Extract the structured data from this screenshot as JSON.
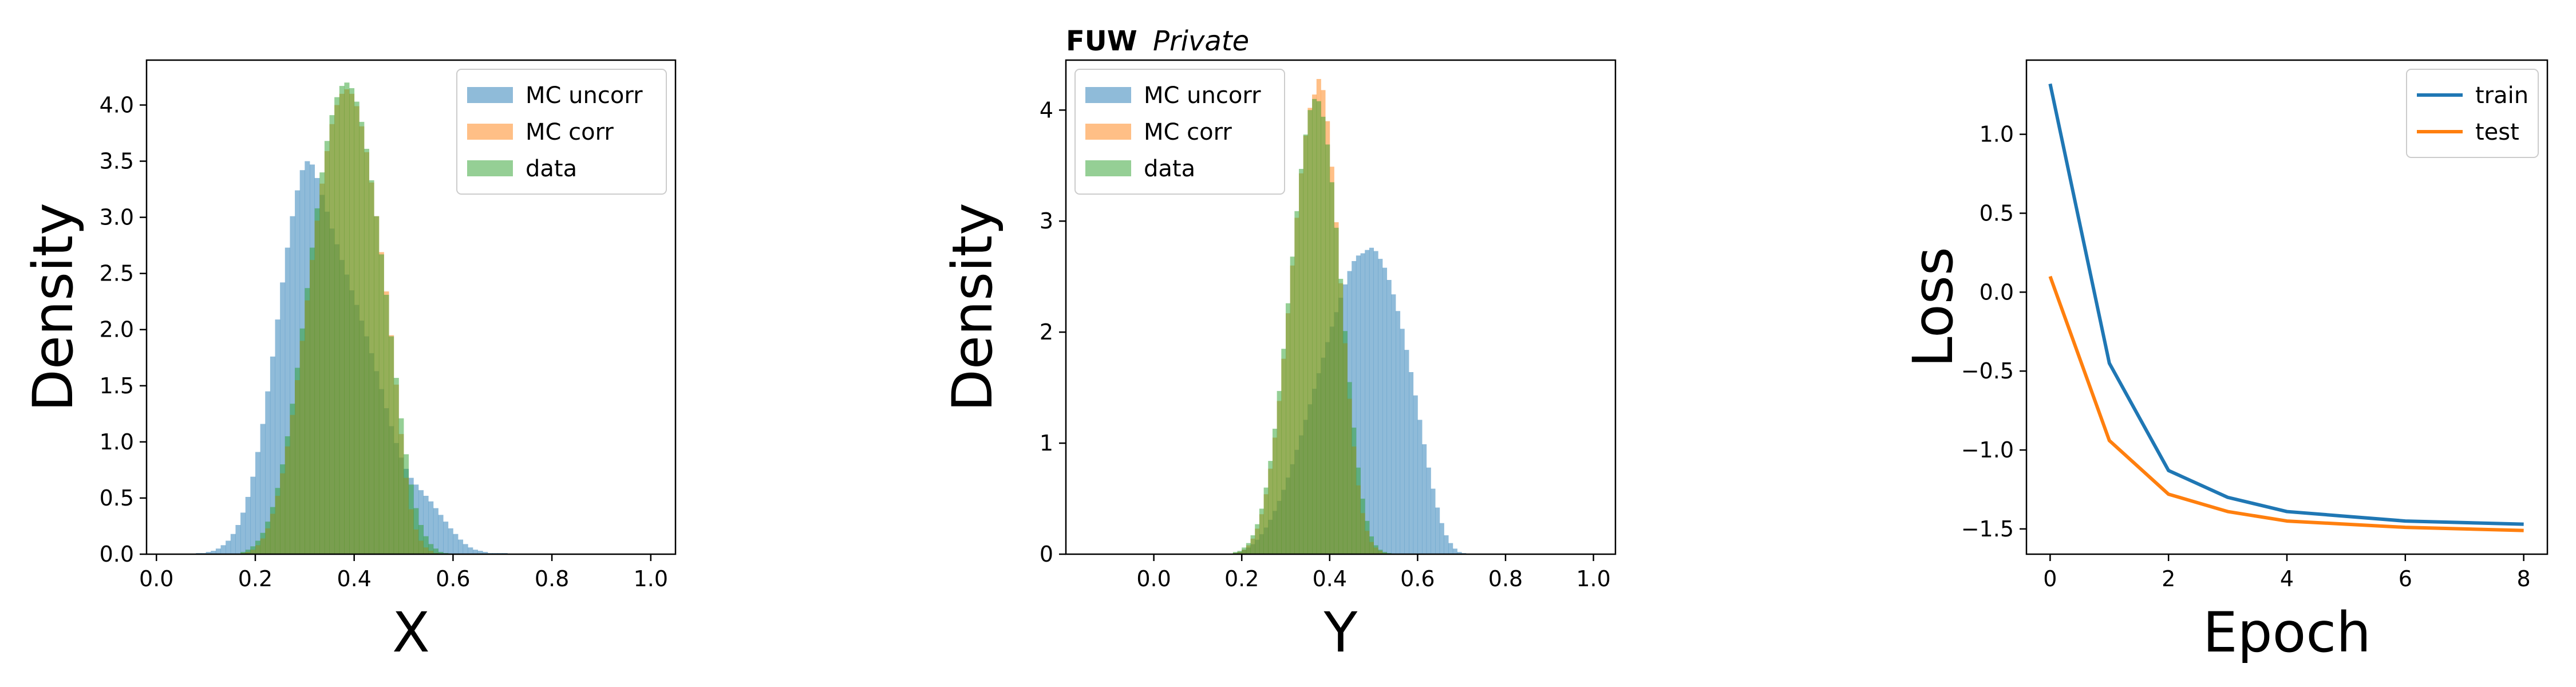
{
  "figure": {
    "title_prefix": "FUW",
    "title_suffix": "Private"
  },
  "chart_data": [
    {
      "type": "histogram",
      "xlabel": "X",
      "ylabel": "Density",
      "xlim": [
        -0.02,
        1.05
      ],
      "ylim": [
        0,
        4.4
      ],
      "xticks": [
        0.0,
        0.2,
        0.4,
        0.6,
        0.8,
        1.0
      ],
      "xtick_labels": [
        "0.0",
        "0.2",
        "0.4",
        "0.6",
        "0.8",
        "1.0"
      ],
      "yticks": [
        0.0,
        0.5,
        1.0,
        1.5,
        2.0,
        2.5,
        3.0,
        3.5,
        4.0
      ],
      "ytick_labels": [
        "0.0",
        "0.5",
        "1.0",
        "1.5",
        "2.0",
        "2.5",
        "3.0",
        "3.5",
        "4.0"
      ],
      "bin_start": 0.08,
      "bin_width": 0.01,
      "legend_position": "top-right",
      "series": [
        {
          "name": "MC uncorr",
          "color": "#1f77b4",
          "values": [
            0.01,
            0.01,
            0.02,
            0.03,
            0.05,
            0.08,
            0.12,
            0.18,
            0.26,
            0.37,
            0.51,
            0.69,
            0.91,
            1.16,
            1.45,
            1.76,
            2.09,
            2.42,
            2.73,
            3.01,
            3.24,
            3.42,
            3.5,
            3.47,
            3.35,
            3.2,
            3.05,
            2.9,
            2.76,
            2.62,
            2.49,
            2.35,
            2.22,
            2.08,
            1.94,
            1.79,
            1.63,
            1.47,
            1.3,
            1.14,
            0.99,
            0.86,
            0.76,
            0.68,
            0.62,
            0.57,
            0.52,
            0.47,
            0.41,
            0.35,
            0.29,
            0.23,
            0.18,
            0.13,
            0.09,
            0.06,
            0.04,
            0.03,
            0.02,
            0.01,
            0.01,
            0.01,
            0.01
          ]
        },
        {
          "name": "MC corr",
          "color": "#ff7f0e",
          "values": [
            0,
            0,
            0,
            0,
            0,
            0,
            0,
            0,
            0,
            0.01,
            0.02,
            0.04,
            0.08,
            0.14,
            0.23,
            0.36,
            0.52,
            0.72,
            0.96,
            1.24,
            1.55,
            1.9,
            2.26,
            2.62,
            2.97,
            3.3,
            3.59,
            3.83,
            4.0,
            4.1,
            4.14,
            4.1,
            3.99,
            3.81,
            3.58,
            3.31,
            3.01,
            2.69,
            2.34,
            1.95,
            1.51,
            1.07,
            0.68,
            0.4,
            0.22,
            0.12,
            0.06,
            0.03,
            0.01,
            0,
            0,
            0,
            0,
            0,
            0,
            0,
            0,
            0,
            0,
            0,
            0,
            0,
            0
          ]
        },
        {
          "name": "data",
          "color": "#2ca02c",
          "values": [
            0,
            0,
            0,
            0,
            0,
            0,
            0,
            0,
            0,
            0.02,
            0.04,
            0.07,
            0.12,
            0.19,
            0.29,
            0.42,
            0.59,
            0.8,
            1.05,
            1.34,
            1.66,
            2.01,
            2.37,
            2.73,
            3.08,
            3.4,
            3.68,
            3.91,
            4.07,
            4.17,
            4.2,
            4.15,
            4.03,
            3.85,
            3.61,
            3.33,
            3.01,
            2.67,
            2.31,
            1.94,
            1.57,
            1.21,
            0.89,
            0.62,
            0.41,
            0.26,
            0.16,
            0.09,
            0.05,
            0.02,
            0.01,
            0,
            0,
            0,
            0,
            0,
            0,
            0,
            0,
            0,
            0,
            0,
            0
          ]
        }
      ]
    },
    {
      "type": "histogram",
      "xlabel": "Y",
      "ylabel": "Density",
      "xlim": [
        -0.2,
        1.05
      ],
      "ylim": [
        0,
        4.45
      ],
      "xticks": [
        0.0,
        0.2,
        0.4,
        0.6,
        0.8,
        1.0
      ],
      "xtick_labels": [
        "0.0",
        "0.2",
        "0.4",
        "0.6",
        "0.8",
        "1.0"
      ],
      "yticks": [
        0,
        1,
        2,
        3,
        4
      ],
      "ytick_labels": [
        "0",
        "1",
        "2",
        "3",
        "4"
      ],
      "bin_start": 0.1,
      "bin_width": 0.01,
      "legend_position": "top-left",
      "series": [
        {
          "name": "MC uncorr",
          "color": "#1f77b4",
          "values": [
            0,
            0,
            0,
            0,
            0,
            0,
            0,
            0,
            0.01,
            0.02,
            0.04,
            0.06,
            0.09,
            0.13,
            0.18,
            0.24,
            0.31,
            0.39,
            0.48,
            0.58,
            0.69,
            0.81,
            0.94,
            1.07,
            1.21,
            1.35,
            1.49,
            1.63,
            1.77,
            1.91,
            2.05,
            2.18,
            2.31,
            2.43,
            2.55,
            2.64,
            2.69,
            2.71,
            2.74,
            2.76,
            2.73,
            2.66,
            2.58,
            2.47,
            2.34,
            2.19,
            2.03,
            1.84,
            1.64,
            1.43,
            1.21,
            0.99,
            0.78,
            0.59,
            0.42,
            0.28,
            0.17,
            0.1,
            0.05,
            0.02,
            0.01,
            0,
            0,
            0,
            0,
            0,
            0,
            0,
            0,
            0,
            0,
            0
          ]
        },
        {
          "name": "MC corr",
          "color": "#ff7f0e",
          "values": [
            0,
            0,
            0,
            0,
            0,
            0,
            0,
            0,
            0.01,
            0.02,
            0.04,
            0.08,
            0.14,
            0.23,
            0.36,
            0.54,
            0.77,
            1.05,
            1.38,
            1.76,
            2.17,
            2.6,
            3.03,
            3.43,
            3.77,
            4.02,
            4.14,
            4.28,
            4.18,
            3.9,
            3.49,
            2.99,
            2.44,
            1.9,
            1.4,
            0.97,
            0.62,
            0.37,
            0.21,
            0.11,
            0.06,
            0.03,
            0.01,
            0,
            0,
            0,
            0,
            0,
            0,
            0,
            0,
            0,
            0,
            0,
            0,
            0,
            0,
            0,
            0,
            0,
            0,
            0,
            0,
            0,
            0,
            0,
            0,
            0,
            0,
            0,
            0,
            0
          ]
        },
        {
          "name": "data",
          "color": "#2ca02c",
          "values": [
            0,
            0,
            0,
            0,
            0,
            0,
            0,
            0,
            0.02,
            0.03,
            0.06,
            0.1,
            0.17,
            0.27,
            0.41,
            0.6,
            0.84,
            1.13,
            1.47,
            1.85,
            2.26,
            2.68,
            3.09,
            3.47,
            3.78,
            4.0,
            4.1,
            4.08,
            3.94,
            3.69,
            3.35,
            2.94,
            2.48,
            2.01,
            1.55,
            1.14,
            0.78,
            0.5,
            0.3,
            0.16,
            0.08,
            0.04,
            0.02,
            0.01,
            0,
            0,
            0,
            0,
            0,
            0,
            0,
            0,
            0,
            0,
            0,
            0,
            0,
            0,
            0,
            0,
            0,
            0,
            0,
            0,
            0,
            0,
            0,
            0,
            0,
            0,
            0,
            0
          ]
        }
      ]
    },
    {
      "type": "line",
      "xlabel": "Epoch",
      "ylabel": "Loss",
      "xlim": [
        -0.4,
        8.4
      ],
      "ylim": [
        -1.66,
        1.47
      ],
      "xticks": [
        0,
        2,
        4,
        6,
        8
      ],
      "xtick_labels": [
        "0",
        "2",
        "4",
        "6",
        "8"
      ],
      "yticks": [
        -1.5,
        -1.0,
        -0.5,
        0.0,
        0.5,
        1.0
      ],
      "ytick_labels": [
        "−1.5",
        "−1.0",
        "−0.5",
        "0.0",
        "0.5",
        "1.0"
      ],
      "legend_position": "top-right",
      "x": [
        0,
        1,
        2,
        3,
        4,
        5,
        6,
        7,
        8
      ],
      "series": [
        {
          "name": "train",
          "color": "#1f77b4",
          "values": [
            1.32,
            -0.45,
            -1.13,
            -1.3,
            -1.39,
            -1.42,
            -1.45,
            -1.46,
            -1.47
          ]
        },
        {
          "name": "test",
          "color": "#ff7f0e",
          "values": [
            0.1,
            -0.94,
            -1.28,
            -1.39,
            -1.45,
            -1.47,
            -1.49,
            -1.5,
            -1.51
          ]
        }
      ]
    }
  ]
}
